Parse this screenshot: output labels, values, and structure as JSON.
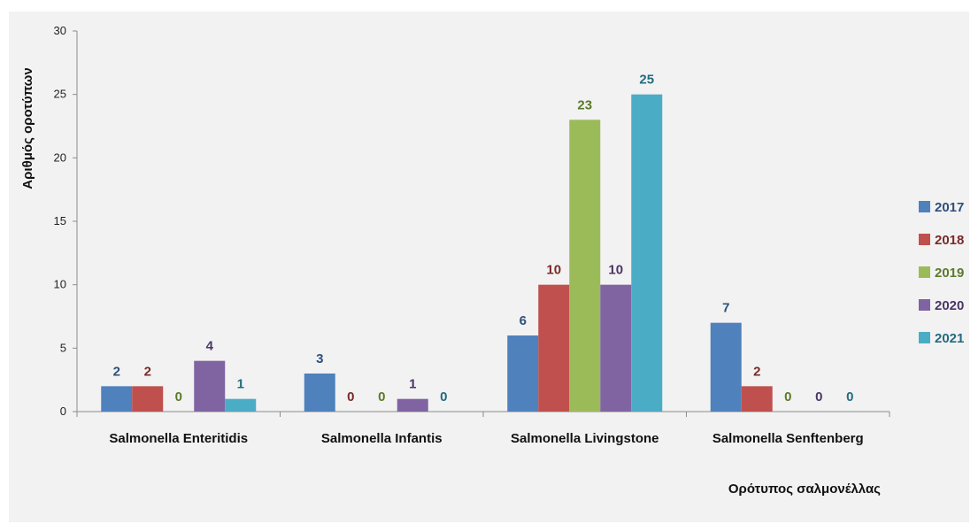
{
  "chart_data": {
    "type": "bar",
    "title": "",
    "xlabel": "Ορότυπος σαλμονέλλας",
    "ylabel": "Αριθμός οροτύπων",
    "ylim": [
      0,
      30
    ],
    "yticks": [
      0,
      5,
      10,
      15,
      20,
      25,
      30
    ],
    "grid": false,
    "legend_position": "right",
    "categories": [
      "Salmonella Enteritidis",
      "Salmonella Infantis",
      "Salmonella Livingstone",
      "Salmonella Senftenberg"
    ],
    "series": [
      {
        "name": "2017",
        "color": "#4f81bd",
        "label_color": "#2e4f7a",
        "values": [
          2,
          3,
          6,
          7
        ]
      },
      {
        "name": "2018",
        "color": "#c0504d",
        "label_color": "#7a2a28",
        "values": [
          2,
          0,
          10,
          2
        ]
      },
      {
        "name": "2019",
        "color": "#9bbb59",
        "label_color": "#5b7a2a",
        "values": [
          0,
          0,
          23,
          0
        ]
      },
      {
        "name": "2020",
        "color": "#8064a2",
        "label_color": "#4a3566",
        "values": [
          4,
          1,
          10,
          0
        ]
      },
      {
        "name": "2021",
        "color": "#4bacc6",
        "label_color": "#236b80",
        "values": [
          1,
          0,
          25,
          0
        ]
      }
    ]
  }
}
